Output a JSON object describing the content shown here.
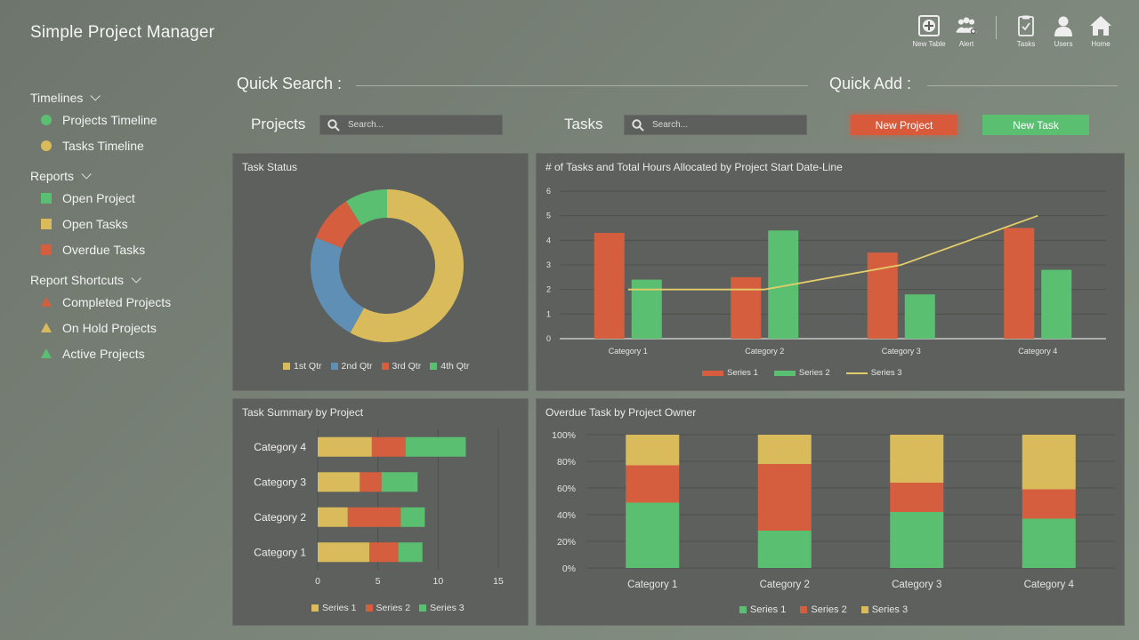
{
  "app": {
    "title": "Simple Project Manager"
  },
  "toolbar": [
    {
      "label": "New Table",
      "icon": "new-table-icon"
    },
    {
      "label": "Alert",
      "icon": "alert-icon"
    },
    {
      "label": "Tasks",
      "icon": "tasks-icon"
    },
    {
      "label": "Users",
      "icon": "users-icon"
    },
    {
      "label": "Home",
      "icon": "home-icon"
    }
  ],
  "sidebar": {
    "sections": [
      {
        "title": "Timelines",
        "items": [
          {
            "label": "Projects Timeline",
            "shape": "circle",
            "color": "#5bbf72"
          },
          {
            "label": "Tasks Timeline",
            "shape": "circle",
            "color": "#d9bb5b"
          }
        ]
      },
      {
        "title": "Reports",
        "items": [
          {
            "label": "Open Project",
            "shape": "square",
            "color": "#5bbf72"
          },
          {
            "label": "Open Tasks",
            "shape": "square",
            "color": "#d9bb5b"
          },
          {
            "label": "Overdue Tasks",
            "shape": "square",
            "color": "#d55e3f"
          }
        ]
      },
      {
        "title": "Report Shortcuts",
        "items": [
          {
            "label": "Completed Projects",
            "shape": "triangle",
            "color": "#d55e3f"
          },
          {
            "label": "On Hold Projects",
            "shape": "triangle",
            "color": "#d9bb5b"
          },
          {
            "label": "Active Projects",
            "shape": "triangle",
            "color": "#5bbf72"
          }
        ]
      }
    ]
  },
  "quick": {
    "search_label": "Quick Search :",
    "add_label": "Quick Add :",
    "projects_label": "Projects",
    "tasks_label": "Tasks",
    "search_placeholder": "Search...",
    "new_project": "New Project",
    "new_task": "New Task"
  },
  "colors": {
    "green": "#5bbf72",
    "yellow": "#d9bb5b",
    "red": "#d55e3f",
    "blue": "#5f8fb5",
    "line": "#e3cd6a"
  },
  "chart_data": [
    {
      "id": "task-status",
      "type": "pie",
      "title": "Task Status",
      "labels": [
        "1st Qtr",
        "2nd Qtr",
        "3rd Qtr",
        "4th Qtr"
      ],
      "values": [
        58,
        23,
        10,
        9
      ],
      "legend": "bottom"
    },
    {
      "id": "tasks-hours",
      "type": "bar",
      "title": "# of Tasks and Total Hours Allocated by Project Start Date-Line",
      "categories": [
        "Category 1",
        "Category 2",
        "Category 3",
        "Category 4"
      ],
      "series": [
        {
          "name": "Series 1",
          "type": "bar",
          "values": [
            4.3,
            2.5,
            3.5,
            4.5
          ]
        },
        {
          "name": "Series 2",
          "type": "bar",
          "values": [
            2.4,
            4.4,
            1.8,
            2.8
          ]
        },
        {
          "name": "Series 3",
          "type": "line",
          "values": [
            2,
            2,
            3,
            5
          ]
        }
      ],
      "ylim": [
        0,
        6
      ],
      "yticks": [
        0,
        1,
        2,
        3,
        4,
        5,
        6
      ],
      "grid": true,
      "legend": "bottom"
    },
    {
      "id": "task-summary",
      "type": "bar",
      "orientation": "horizontal",
      "stacked": true,
      "title": "Task Summary by Project",
      "categories": [
        "Category 1",
        "Category 2",
        "Category 3",
        "Category 4"
      ],
      "series": [
        {
          "name": "Series 1",
          "values": [
            4.3,
            2.5,
            3.5,
            4.5
          ]
        },
        {
          "name": "Series 2",
          "values": [
            2.4,
            4.4,
            1.8,
            2.8
          ]
        },
        {
          "name": "Series 3",
          "values": [
            2,
            2,
            3,
            5
          ]
        }
      ],
      "xlim": [
        0,
        15
      ],
      "xticks": [
        0,
        5,
        10,
        15
      ],
      "grid": true,
      "legend": "bottom"
    },
    {
      "id": "overdue-owner",
      "type": "bar",
      "stacked": "percent",
      "title": "Overdue Task by Project Owner",
      "categories": [
        "Category 1",
        "Category 2",
        "Category 3",
        "Category 4"
      ],
      "series": [
        {
          "name": "Series 1",
          "values": [
            49,
            28,
            42,
            37
          ]
        },
        {
          "name": "Series 2",
          "values": [
            28,
            50,
            22,
            22
          ]
        },
        {
          "name": "Series 3",
          "values": [
            23,
            22,
            36,
            41
          ]
        }
      ],
      "yticks": [
        "0%",
        "20%",
        "40%",
        "60%",
        "80%",
        "100%"
      ],
      "grid": true,
      "legend": "bottom"
    }
  ]
}
